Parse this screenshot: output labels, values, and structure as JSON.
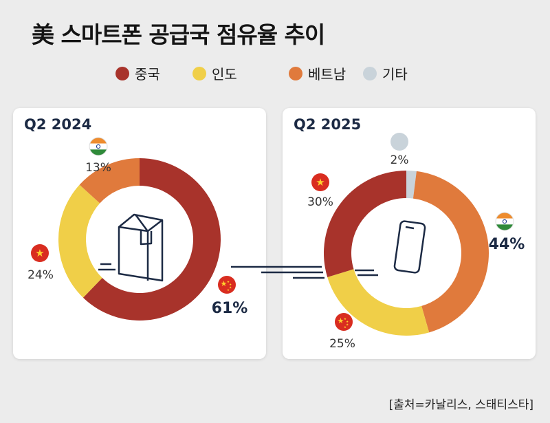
{
  "title": "美 스마트폰 공급국 점유율 추이",
  "source": "[출처=카날리스, 스태티스타]",
  "legend": [
    {
      "label": "중국",
      "color": "#a8332b"
    },
    {
      "label": "인도",
      "color": "#f0cf48"
    },
    {
      "label": "베트남",
      "color": "#e07a3c"
    },
    {
      "label": "기타",
      "color": "#c9d3da"
    }
  ],
  "chart_data": [
    {
      "type": "pie",
      "title": "Q2 2024",
      "slices": [
        {
          "name": "중국",
          "value": 61,
          "label": "61%",
          "color": "#a8332b",
          "flag": "china-flag-icon"
        },
        {
          "name": "베트남",
          "value": 24,
          "label": "24%",
          "color": "#f0cf48",
          "flag": "vietnam-flag-icon"
        },
        {
          "name": "인도",
          "value": 13,
          "label": "13%",
          "color": "#e07a3c",
          "flag": "india-flag-icon"
        }
      ],
      "center_icon": "box-icon"
    },
    {
      "type": "pie",
      "title": "Q2 2025",
      "slices": [
        {
          "name": "기타",
          "value": 2,
          "label": "2%",
          "color": "#c9d3da",
          "flag": "gray-dot-icon"
        },
        {
          "name": "인도",
          "value": 44,
          "label": "44%",
          "color": "#e07a3c",
          "flag": "india-flag-icon"
        },
        {
          "name": "중국",
          "value": 25,
          "label": "25%",
          "color": "#f0cf48",
          "flag": "china-flag-icon"
        },
        {
          "name": "베트남",
          "value": 30,
          "label": "30%",
          "color": "#a8332b",
          "flag": "vietnam-flag-icon"
        }
      ],
      "center_icon": "smartphone-icon"
    }
  ]
}
